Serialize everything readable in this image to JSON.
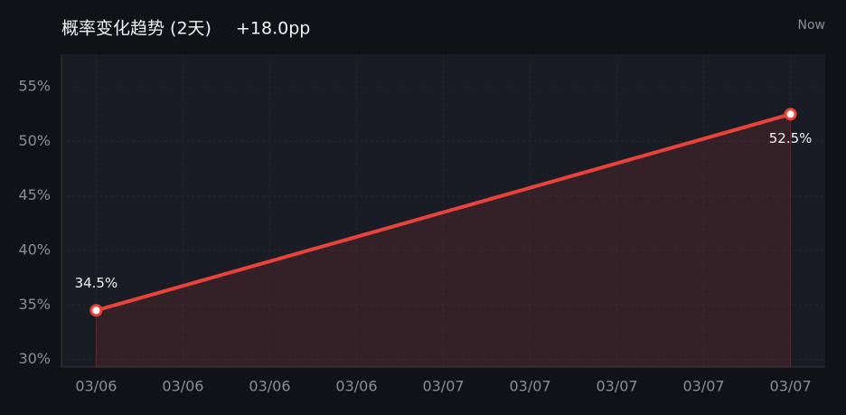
{
  "chart_data": {
    "type": "line",
    "title": "概率变化趋势 (2天)",
    "subtitle": "+18.0pp",
    "annotation": "Now",
    "x": [
      0,
      8
    ],
    "xlim": [
      -0.4,
      8.4
    ],
    "xticks": [
      {
        "value": 0,
        "label": "03/06"
      },
      {
        "value": 1,
        "label": "03/06"
      },
      {
        "value": 2,
        "label": "03/06"
      },
      {
        "value": 3,
        "label": "03/06"
      },
      {
        "value": 4,
        "label": "03/07"
      },
      {
        "value": 5,
        "label": "03/07"
      },
      {
        "value": 6,
        "label": "03/07"
      },
      {
        "value": 7,
        "label": "03/07"
      },
      {
        "value": 8,
        "label": "03/07"
      }
    ],
    "values": [
      34.5,
      52.5
    ],
    "value_labels": [
      "34.5%",
      "52.5%"
    ],
    "color": "#e8423a",
    "ylim": [
      29.3,
      58
    ],
    "yticks": [
      {
        "value": 30,
        "label": "30%"
      },
      {
        "value": 35,
        "label": "35%"
      },
      {
        "value": 40,
        "label": "40%"
      },
      {
        "value": 45,
        "label": "45%"
      },
      {
        "value": 50,
        "label": "50%"
      },
      {
        "value": 55,
        "label": "55%"
      }
    ],
    "grid": true
  }
}
